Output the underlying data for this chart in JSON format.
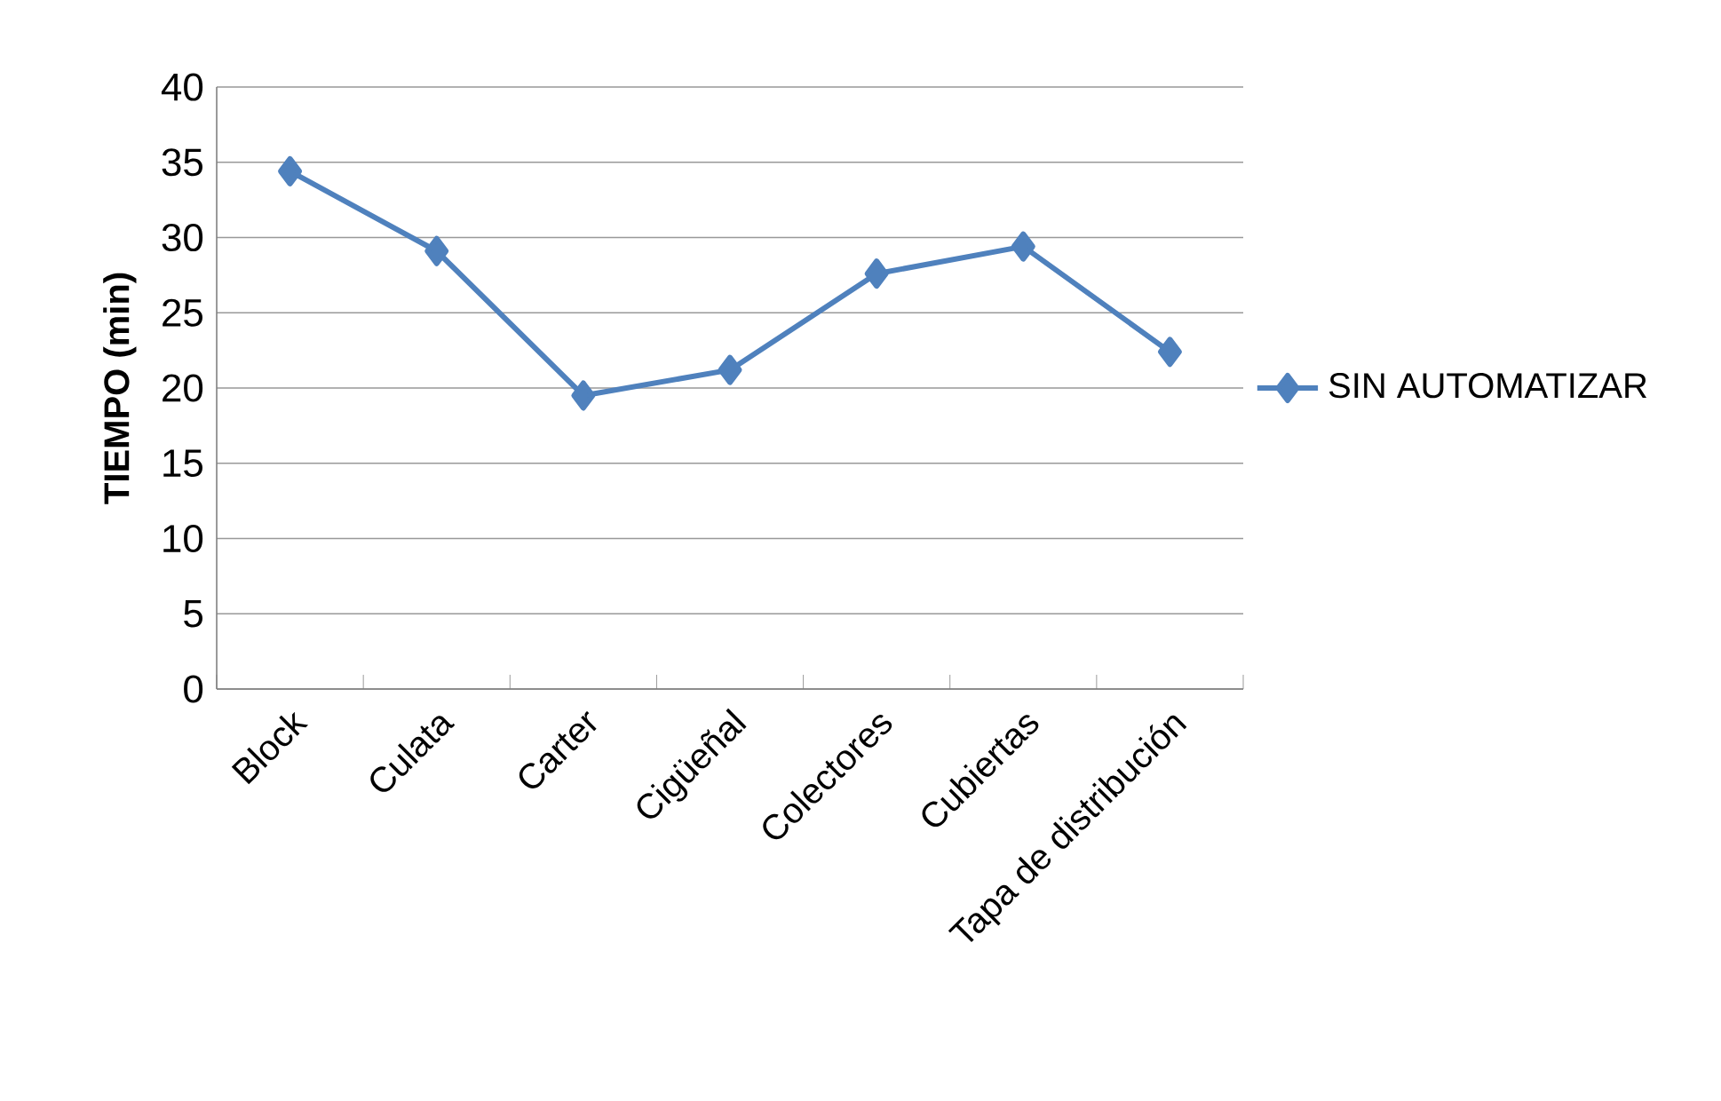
{
  "chart_data": {
    "type": "line",
    "ylabel": "TIEMPO  (min)",
    "categories": [
      "Block",
      "Culata",
      "Carter",
      "Cigüeñal",
      "Colectores",
      "Cubiertas",
      "Tapa de distribución"
    ],
    "series": [
      {
        "name": "SIN AUTOMATIZAR",
        "color": "#4f81bd",
        "values": [
          34.4,
          29.1,
          19.5,
          21.2,
          27.6,
          29.4,
          22.4
        ]
      }
    ],
    "ylim": [
      0,
      40
    ],
    "yticks": [
      0,
      5,
      10,
      15,
      20,
      25,
      30,
      35,
      40
    ],
    "grid": "y",
    "legend": "right",
    "marker": "diamond",
    "line_style": "solid"
  }
}
